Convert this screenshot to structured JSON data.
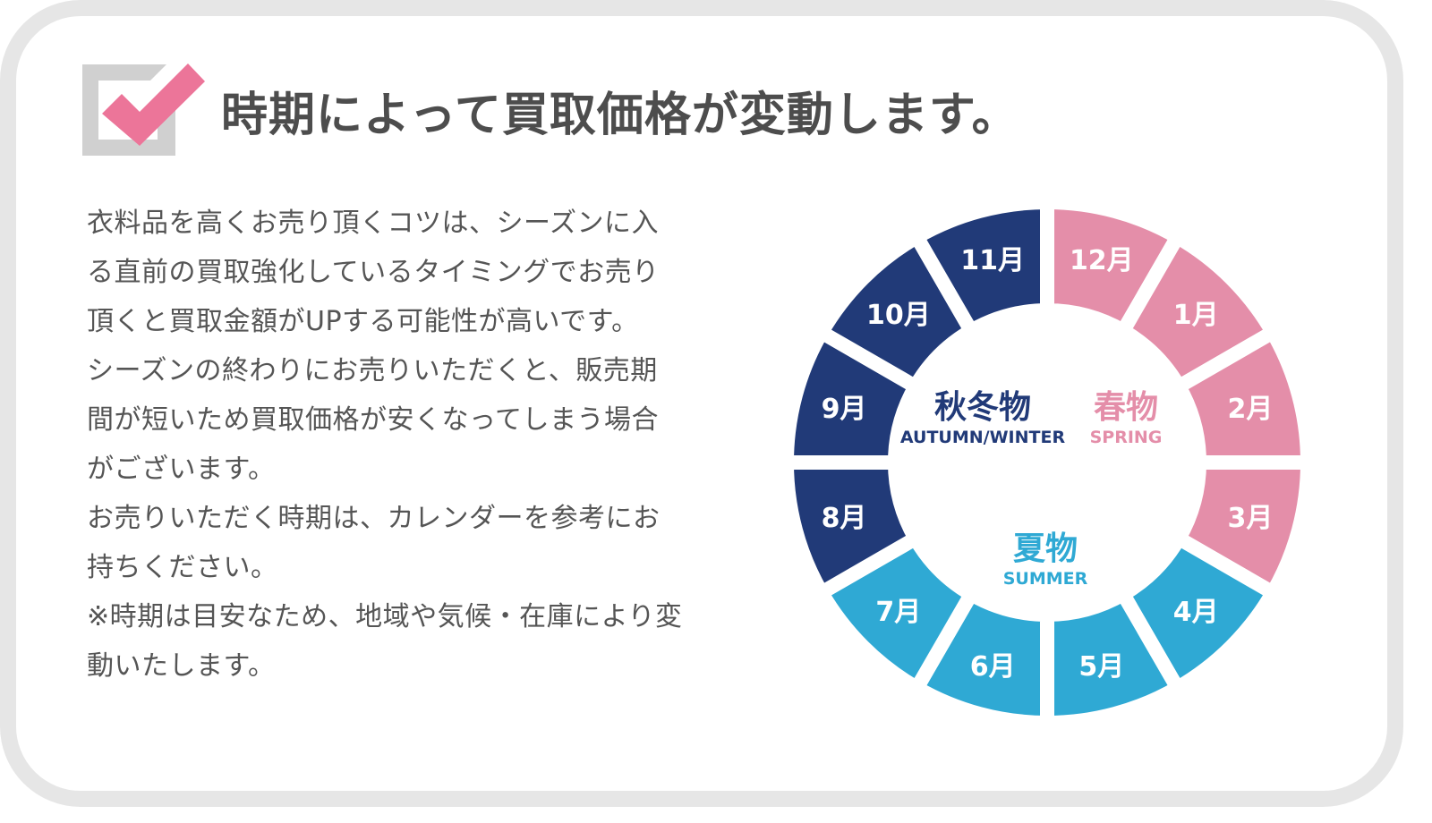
{
  "title": "時期によって買取価格が変動します。",
  "description_lines": [
    "衣料品を高くお売り頂くコツは、シーズンに入",
    "る直前の買取強化しているタイミングでお売り",
    "頂くと買取金額がUPする可能性が高いです。",
    "シーズンの終わりにお売りいただくと、販売期",
    "間が短いため買取価格が安くなってしまう場合",
    "がございます。",
    "お売りいただく時期は、カレンダーを参考にお",
    "持ちください。",
    "※時期は目安なため、地域や気候・在庫により変",
    "動いたします。"
  ],
  "colors": {
    "autumn_winter": "#213a78",
    "spring": "#e48ea9",
    "summer": "#2fa9d4",
    "check": "#ec7599",
    "box": "#d0d0d0",
    "text": "#555555"
  },
  "calendar": {
    "months": [
      {
        "label": "12月",
        "season": "spring"
      },
      {
        "label": "1月",
        "season": "spring"
      },
      {
        "label": "2月",
        "season": "spring"
      },
      {
        "label": "3月",
        "season": "spring"
      },
      {
        "label": "4月",
        "season": "summer"
      },
      {
        "label": "5月",
        "season": "summer"
      },
      {
        "label": "6月",
        "season": "summer"
      },
      {
        "label": "7月",
        "season": "summer"
      },
      {
        "label": "8月",
        "season": "autumn_winter"
      },
      {
        "label": "9月",
        "season": "autumn_winter"
      },
      {
        "label": "10月",
        "season": "autumn_winter"
      },
      {
        "label": "11月",
        "season": "autumn_winter"
      }
    ],
    "seasons": {
      "autumn_winter": {
        "jp": "秋冬物",
        "en": "AUTUMN/WINTER"
      },
      "spring": {
        "jp": "春物",
        "en": "SPRING"
      },
      "summer": {
        "jp": "夏物",
        "en": "SUMMER"
      }
    }
  }
}
